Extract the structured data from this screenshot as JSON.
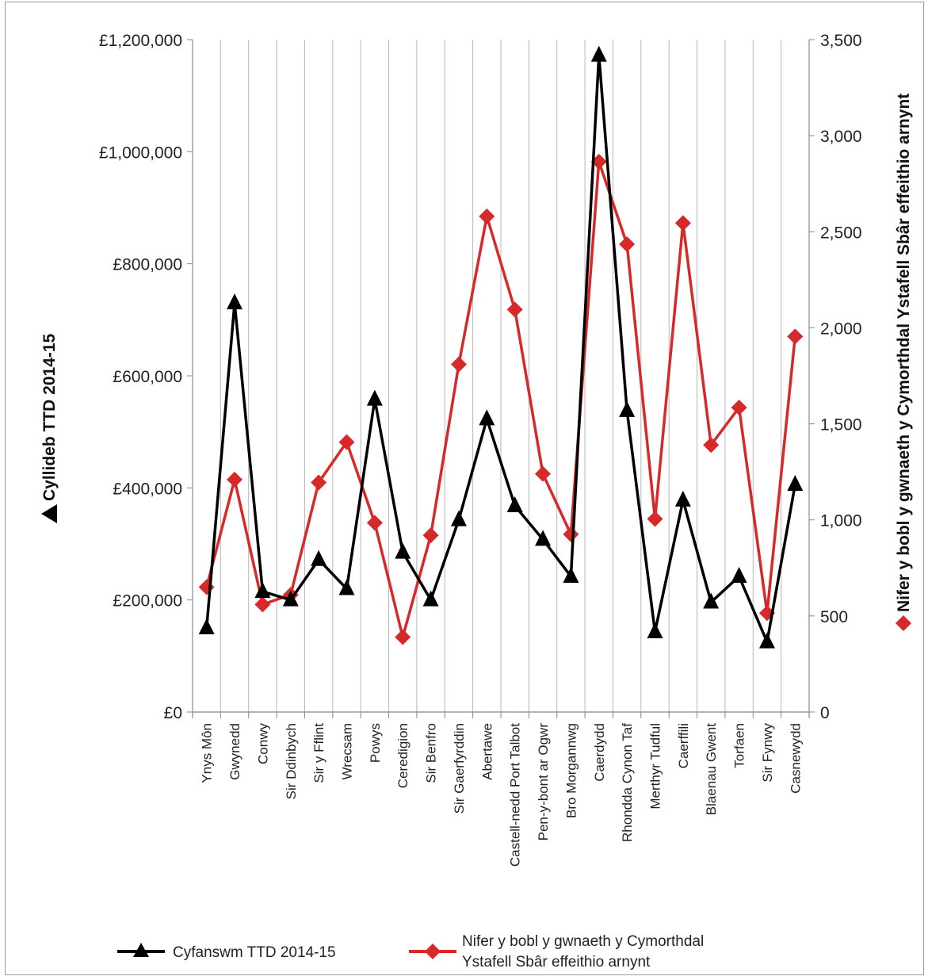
{
  "chart_data": {
    "type": "line",
    "categories": [
      "Ynys Môn",
      "Gwynedd",
      "Conwy",
      "Sir Ddinbych",
      "Sir y Fflint",
      "Wrecsam",
      "Powys",
      "Ceredigion",
      "Sir Benfro",
      "Sir Gaerfyrddin",
      "Abertawe",
      "Castell-nedd Port Talbot",
      "Pen-y-bont ar Ogwr",
      "Bro Morgannwg",
      "Caerdydd",
      "Rhondda Cynon Taf",
      "Merthyr Tudful",
      "Caerffili",
      "Blaenau Gwent",
      "Torfaen",
      "Sir Fynwy",
      "Casnewydd"
    ],
    "series": [
      {
        "name": "Cyfanswm TTD 2014-15",
        "axis": "left",
        "color": "#000000",
        "marker": "triangle",
        "values": [
          150000,
          730000,
          215000,
          200000,
          272000,
          220000,
          558000,
          285000,
          200000,
          343000,
          523000,
          368000,
          308000,
          242000,
          1172000,
          538000,
          143000,
          378000,
          196000,
          242000,
          125000,
          406000
        ]
      },
      {
        "name": "Nifer y bobl y gwnaeth y Cymorthdal Ystafell Sbâr effeithio arnynt",
        "axis": "right",
        "color": "#d62a2a",
        "marker": "diamond",
        "values": [
          650,
          1210,
          560,
          610,
          1195,
          1405,
          985,
          390,
          920,
          1810,
          2580,
          2095,
          1240,
          925,
          2865,
          2435,
          1005,
          2545,
          1390,
          1585,
          515,
          1955
        ]
      }
    ],
    "left_axis": {
      "label": "Cyllideb TTD 2014-15",
      "ylim": [
        0,
        1200000
      ],
      "ticks": [
        "£0",
        "£200,000",
        "£400,000",
        "£600,000",
        "£800,000",
        "£1,000,000",
        "£1,200,000"
      ]
    },
    "right_axis": {
      "label": "Nifer y bobl y gwnaeth y Cymorthdal Ystafell Sbâr effeithio arnynt",
      "ylim": [
        0,
        3500
      ],
      "ticks": [
        "0",
        "500",
        "1,000",
        "1,500",
        "2,000",
        "2,500",
        "3,000",
        "3,500"
      ]
    },
    "grid": "vertical",
    "legend": {
      "placement": "bottom",
      "items": [
        {
          "lines": [
            "Cyfanswm TTD 2014-15"
          ]
        },
        {
          "lines": [
            "Nifer y bobl y gwnaeth y Cymorthdal",
            "Ystafell Sbâr effeithio arnynt"
          ]
        }
      ]
    }
  }
}
